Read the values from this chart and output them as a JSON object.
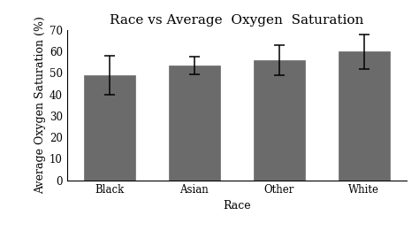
{
  "title": "Race vs Average  Oxygen  Saturation",
  "xlabel": "Race",
  "ylabel": "Average Oxygen Saturation (%)",
  "categories": [
    "Black",
    "Asian",
    "Other",
    "White"
  ],
  "values": [
    49.0,
    53.5,
    56.0,
    60.0
  ],
  "errors": [
    9.0,
    4.0,
    7.0,
    8.0
  ],
  "bar_color": "#6b6b6b",
  "bar_edgecolor": "#6b6b6b",
  "error_color": "black",
  "ylim": [
    0,
    70
  ],
  "yticks": [
    0,
    10,
    20,
    30,
    40,
    50,
    60,
    70
  ],
  "title_fontsize": 11,
  "label_fontsize": 9,
  "tick_fontsize": 8.5,
  "bar_width": 0.6,
  "background_color": "#ffffff",
  "capsize": 4
}
